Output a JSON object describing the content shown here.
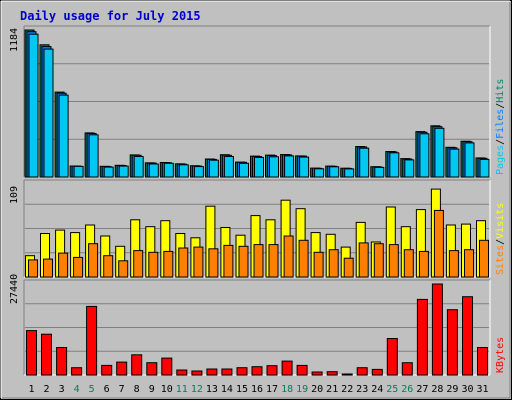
{
  "chart_data": {
    "type": "bar",
    "title": "Daily usage for July 2015",
    "categories": [
      "1",
      "2",
      "3",
      "4",
      "5",
      "6",
      "7",
      "8",
      "9",
      "10",
      "11",
      "12",
      "13",
      "14",
      "15",
      "16",
      "17",
      "18",
      "19",
      "20",
      "21",
      "22",
      "23",
      "24",
      "25",
      "26",
      "27",
      "28",
      "29",
      "30",
      "31"
    ],
    "weekend_days": [
      "4",
      "5",
      "11",
      "12",
      "18",
      "19",
      "25",
      "26"
    ],
    "colors": {
      "pages": "#00c8f0",
      "files": "#0080ff",
      "hits": "#008060",
      "sites": "#ff8000",
      "visits": "#ffff00",
      "kbytes": "#ff0000",
      "kbytes_label": "#ff0000",
      "weekend_tick": "#00805c",
      "weekday_tick": "#000000",
      "title": "#0000cc",
      "panel_bg": "#c0c0c0"
    },
    "panels": [
      {
        "id": "hits-files-pages",
        "ymax_label": "1184",
        "ymax": 1184,
        "legend": [
          {
            "text": "Pages",
            "color": "#00c8f0"
          },
          {
            "text": "/",
            "color": "#000000"
          },
          {
            "text": "Files",
            "color": "#0080ff"
          },
          {
            "text": "/",
            "color": "#000000"
          },
          {
            "text": "Hits",
            "color": "#008060"
          }
        ],
        "series": [
          {
            "name": "Hits",
            "values": [
              1184,
              1065,
              684,
              89,
              355,
              86,
              94,
              178,
              114,
              117,
              106,
              91,
              145,
              180,
              120,
              168,
              176,
              181,
              170,
              72,
              88,
              71,
              246,
              83,
              205,
              148,
              366,
              412,
              239,
              288,
              154
            ]
          },
          {
            "name": "Files",
            "values": [
              1170,
              1050,
              675,
              88,
              350,
              84,
              92,
              175,
              112,
              115,
              104,
              89,
              142,
              175,
              118,
              165,
              172,
              178,
              168,
              70,
              86,
              69,
              242,
              81,
              202,
              145,
              360,
              405,
              235,
              284,
              150
            ]
          },
          {
            "name": "Pages",
            "values": [
              1150,
              1030,
              660,
              85,
              340,
              80,
              88,
              165,
              105,
              110,
              98,
              84,
              135,
              165,
              110,
              158,
              163,
              170,
              160,
              66,
              82,
              65,
              232,
              77,
              195,
              138,
              348,
              392,
              225,
              275,
              142
            ]
          }
        ]
      },
      {
        "id": "visits-sites",
        "ymax_label": "109",
        "ymax": 109,
        "legend": [
          {
            "text": "Sites",
            "color": "#ff8000"
          },
          {
            "text": "/",
            "color": "#000000"
          },
          {
            "text": "Visits",
            "color": "#ffff00"
          }
        ],
        "series": [
          {
            "name": "Visits",
            "values": [
              25,
              51,
              55,
              52,
              61,
              48,
              36,
              67,
              59,
              66,
              51,
              46,
              83,
              58,
              49,
              72,
              67,
              90,
              80,
              52,
              50,
              35,
              64,
              41,
              82,
              59,
              79,
              103,
              61,
              62,
              66
            ]
          },
          {
            "name": "Sites",
            "values": [
              20,
              21,
              28,
              23,
              39,
              25,
              19,
              31,
              29,
              30,
              34,
              35,
              33,
              37,
              36,
              38,
              38,
              48,
              43,
              29,
              32,
              22,
              40,
              39,
              38,
              32,
              30,
              78,
              31,
              32,
              43
            ]
          }
        ]
      },
      {
        "id": "kbytes",
        "ymax_label": "27440",
        "ymax": 27440,
        "legend": [
          {
            "text": "KBytes",
            "color": "#ff0000"
          }
        ],
        "series": [
          {
            "name": "KBytes",
            "values": [
              13400,
              12300,
              8300,
              2200,
              20700,
              2900,
              3900,
              6100,
              3700,
              5100,
              1500,
              1200,
              1800,
              1800,
              2200,
              2500,
              2800,
              4200,
              2900,
              900,
              1000,
              300,
              2200,
              1700,
              11000,
              3700,
              22800,
              27440,
              19700,
              23600,
              8300
            ]
          }
        ]
      }
    ]
  }
}
